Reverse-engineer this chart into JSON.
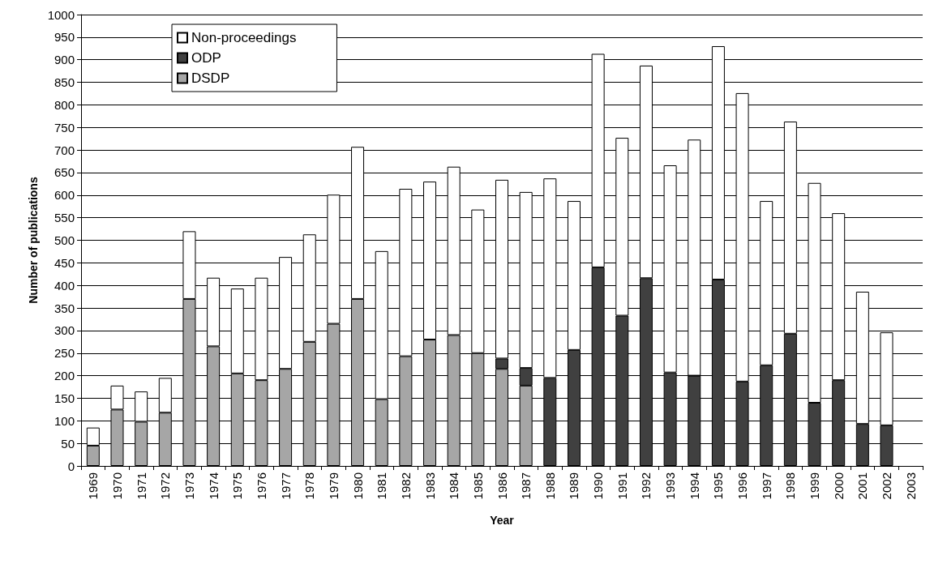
{
  "chart_data": {
    "type": "bar",
    "stacked": true,
    "xlabel": "Year",
    "ylabel": "Number of publications",
    "categories": [
      "1969",
      "1970",
      "1971",
      "1972",
      "1973",
      "1974",
      "1975",
      "1976",
      "1977",
      "1978",
      "1979",
      "1980",
      "1981",
      "1982",
      "1983",
      "1984",
      "1985",
      "1986",
      "1987",
      "1988",
      "1989",
      "1990",
      "1991",
      "1992",
      "1993",
      "1994",
      "1995",
      "1996",
      "1997",
      "1998",
      "1999",
      "2000",
      "2001",
      "2002",
      "2003"
    ],
    "series": [
      {
        "name": "DSDP",
        "color": "#a6a6a6",
        "values": [
          45,
          125,
          98,
          118,
          370,
          265,
          205,
          190,
          215,
          275,
          315,
          370,
          148,
          243,
          280,
          290,
          250,
          215,
          178,
          null,
          null,
          null,
          null,
          null,
          null,
          null,
          null,
          null,
          null,
          null,
          null,
          null,
          null,
          null,
          null
        ]
      },
      {
        "name": "ODP",
        "color": "#404040",
        "values": [
          null,
          null,
          null,
          null,
          null,
          null,
          null,
          null,
          null,
          null,
          null,
          null,
          null,
          null,
          null,
          null,
          null,
          23,
          39,
          195,
          257,
          440,
          333,
          416,
          207,
          200,
          413,
          187,
          223,
          293,
          140,
          190,
          93,
          90,
          null
        ]
      },
      {
        "name": "Non-proceedings",
        "color": "#ffffff",
        "values": [
          40,
          53,
          67,
          77,
          150,
          152,
          188,
          227,
          248,
          238,
          286,
          337,
          328,
          371,
          350,
          373,
          318,
          396,
          390,
          442,
          330,
          473,
          394,
          471,
          459,
          523,
          517,
          639,
          364,
          470,
          487,
          370,
          293,
          206,
          null
        ]
      }
    ],
    "ylim": [
      0,
      1000
    ],
    "yticks": [
      0,
      50,
      100,
      150,
      200,
      250,
      300,
      350,
      400,
      450,
      500,
      550,
      600,
      650,
      700,
      750,
      800,
      850,
      900,
      950,
      1000
    ],
    "grid": "y",
    "legend": "top left"
  }
}
